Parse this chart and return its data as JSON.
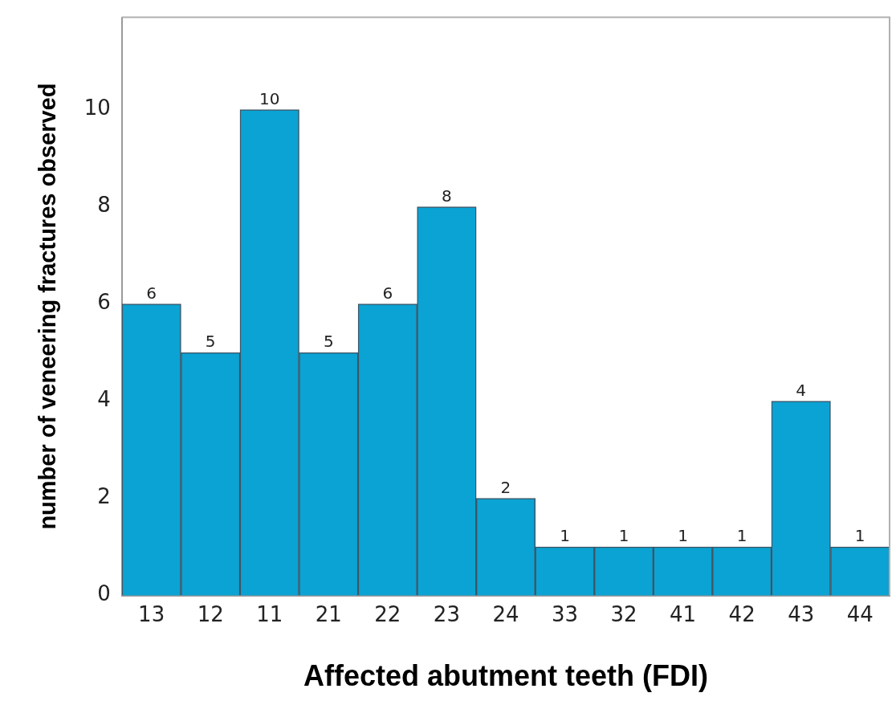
{
  "chart_data": {
    "type": "bar",
    "xlabel": "Affected abutment teeth (FDI)",
    "ylabel": "number of veneering fractures observed",
    "categories": [
      "13",
      "12",
      "11",
      "21",
      "22",
      "23",
      "24",
      "33",
      "32",
      "41",
      "42",
      "43",
      "44"
    ],
    "values": [
      6,
      5,
      10,
      5,
      6,
      8,
      2,
      1,
      1,
      1,
      1,
      4,
      1
    ],
    "color": "#0ba3d3",
    "ylim": [
      0,
      11.9
    ],
    "yticks": [
      0,
      2,
      4,
      6,
      8,
      10
    ],
    "grid": false,
    "data_labels": true
  }
}
